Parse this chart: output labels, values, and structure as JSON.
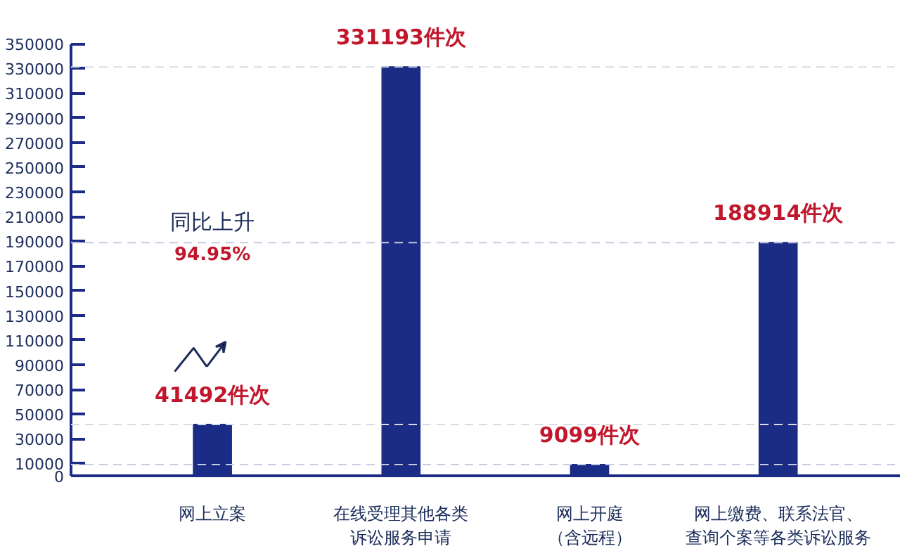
{
  "chart_data": {
    "type": "bar",
    "categories": [
      "网上立案",
      "在线受理其他各类诉讼服务申请",
      "网上开庭（含远程）",
      "网上缴费、联系法官、查询个案等各类诉讼服务"
    ],
    "values": [
      41492,
      331193,
      9099,
      188914
    ],
    "value_labels": [
      "41492件次",
      "331193件次",
      "9099件次",
      "188914件次"
    ],
    "color": "#1b2c86",
    "ylim": [
      0,
      350000
    ],
    "yticks": [
      0,
      10000,
      30000,
      50000,
      70000,
      90000,
      110000,
      130000,
      150000,
      170000,
      190000,
      210000,
      230000,
      250000,
      270000,
      290000,
      310000,
      330000,
      350000
    ],
    "ref_lines": [
      {
        "axis": "y",
        "value": 41492,
        "color": "#d8dbe6",
        "line_style": "dashed"
      },
      {
        "axis": "y",
        "value": 331193,
        "color": "#d8dbe6",
        "line_style": "dashed"
      },
      {
        "axis": "y",
        "value": 9099,
        "color": "#c8cce0",
        "line_style": "dashed"
      },
      {
        "axis": "y",
        "value": 188914,
        "color": "#c8cce0",
        "line_style": "dashed"
      }
    ],
    "annotations": [
      "同比上升",
      "94.95%"
    ],
    "grid": false
  }
}
